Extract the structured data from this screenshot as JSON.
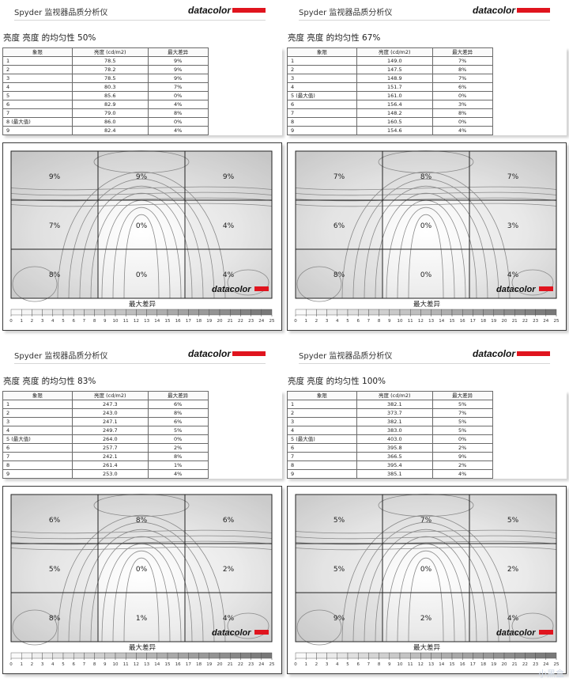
{
  "app_name": "Spyder 监视器品质分析仪",
  "brand": "datacolor",
  "table_headers": [
    "象限",
    "亮度 (cd/m2)",
    "最大差异"
  ],
  "legend": {
    "title": "最大差异",
    "ticks": [
      "0",
      "1",
      "2",
      "3",
      "4",
      "5",
      "6",
      "7",
      "8",
      "9",
      "10",
      "11",
      "12",
      "13",
      "14",
      "15",
      "16",
      "17",
      "18",
      "19",
      "20",
      "21",
      "22",
      "23",
      "24",
      "25"
    ]
  },
  "watermark": "小黑盒",
  "panels": [
    {
      "title": "亮度 亮度 的均匀性 50%",
      "rows": [
        {
          "q": "1",
          "lum": "78.5",
          "diff": "9%"
        },
        {
          "q": "2",
          "lum": "78.2",
          "diff": "9%"
        },
        {
          "q": "3",
          "lum": "78.5",
          "diff": "9%"
        },
        {
          "q": "4",
          "lum": "80.3",
          "diff": "7%"
        },
        {
          "q": "5",
          "lum": "85.6",
          "diff": "0%"
        },
        {
          "q": "6",
          "lum": "82.9",
          "diff": "4%"
        },
        {
          "q": "7",
          "lum": "79.0",
          "diff": "8%"
        },
        {
          "q": "8 (最大值)",
          "lum": "86.0",
          "diff": "0%"
        },
        {
          "q": "9",
          "lum": "82.4",
          "diff": "4%"
        }
      ],
      "grid_labels": [
        "9%",
        "9%",
        "9%",
        "7%",
        "0%",
        "4%",
        "8%",
        "0%",
        "4%"
      ]
    },
    {
      "title": "亮度 亮度 的均匀性 67%",
      "rows": [
        {
          "q": "1",
          "lum": "149.0",
          "diff": "7%"
        },
        {
          "q": "2",
          "lum": "147.5",
          "diff": "8%"
        },
        {
          "q": "3",
          "lum": "148.9",
          "diff": "7%"
        },
        {
          "q": "4",
          "lum": "151.7",
          "diff": "6%"
        },
        {
          "q": "5 (最大值)",
          "lum": "161.0",
          "diff": "0%"
        },
        {
          "q": "6",
          "lum": "156.4",
          "diff": "3%"
        },
        {
          "q": "7",
          "lum": "148.2",
          "diff": "8%"
        },
        {
          "q": "8",
          "lum": "160.5",
          "diff": "0%"
        },
        {
          "q": "9",
          "lum": "154.6",
          "diff": "4%"
        }
      ],
      "grid_labels": [
        "7%",
        "8%",
        "7%",
        "6%",
        "0%",
        "3%",
        "8%",
        "0%",
        "4%"
      ]
    },
    {
      "title": "亮度 亮度 的均匀性 83%",
      "rows": [
        {
          "q": "1",
          "lum": "247.3",
          "diff": "6%"
        },
        {
          "q": "2",
          "lum": "243.0",
          "diff": "8%"
        },
        {
          "q": "3",
          "lum": "247.1",
          "diff": "6%"
        },
        {
          "q": "4",
          "lum": "249.7",
          "diff": "5%"
        },
        {
          "q": "5 (最大值)",
          "lum": "264.0",
          "diff": "0%"
        },
        {
          "q": "6",
          "lum": "257.7",
          "diff": "2%"
        },
        {
          "q": "7",
          "lum": "242.1",
          "diff": "8%"
        },
        {
          "q": "8",
          "lum": "261.4",
          "diff": "1%"
        },
        {
          "q": "9",
          "lum": "253.0",
          "diff": "4%"
        }
      ],
      "grid_labels": [
        "6%",
        "8%",
        "6%",
        "5%",
        "0%",
        "2%",
        "8%",
        "1%",
        "4%"
      ]
    },
    {
      "title": "亮度 亮度 的均匀性 100%",
      "rows": [
        {
          "q": "1",
          "lum": "382.1",
          "diff": "5%"
        },
        {
          "q": "2",
          "lum": "373.7",
          "diff": "7%"
        },
        {
          "q": "3",
          "lum": "382.1",
          "diff": "5%"
        },
        {
          "q": "4",
          "lum": "383.0",
          "diff": "5%"
        },
        {
          "q": "5 (最大值)",
          "lum": "403.0",
          "diff": "0%"
        },
        {
          "q": "6",
          "lum": "395.8",
          "diff": "2%"
        },
        {
          "q": "7",
          "lum": "366.5",
          "diff": "9%"
        },
        {
          "q": "8",
          "lum": "395.4",
          "diff": "2%"
        },
        {
          "q": "9",
          "lum": "385.1",
          "diff": "4%"
        }
      ],
      "grid_labels": [
        "5%",
        "7%",
        "5%",
        "5%",
        "0%",
        "2%",
        "9%",
        "2%",
        "4%"
      ]
    }
  ],
  "colors": {
    "brand_red": "#e0141e",
    "contour": "#8a8a8a",
    "grid": "#222222"
  }
}
